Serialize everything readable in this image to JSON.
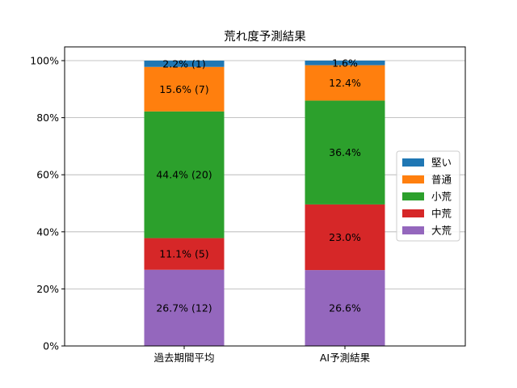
{
  "chart_data": {
    "type": "bar",
    "stacked": true,
    "title": "荒れ度予測結果",
    "xlabel": "",
    "ylabel": "",
    "categories": [
      "過去期間平均",
      "AI予測結果"
    ],
    "ylim": [
      0,
      100
    ],
    "yticks": [
      {
        "value": 0,
        "label": "0%"
      },
      {
        "value": 20,
        "label": "20%"
      },
      {
        "value": 40,
        "label": "40%"
      },
      {
        "value": 60,
        "label": "60%"
      },
      {
        "value": 80,
        "label": "80%"
      },
      {
        "value": 100,
        "label": "100%"
      }
    ],
    "grid": "y",
    "legend_position": "right",
    "series": [
      {
        "name": "大荒",
        "color": "#9467bd",
        "values": [
          26.7,
          26.6
        ],
        "labels": [
          "26.7% (12)",
          "26.6%"
        ]
      },
      {
        "name": "中荒",
        "color": "#d62728",
        "values": [
          11.1,
          23.0
        ],
        "labels": [
          "11.1% (5)",
          "23.0%"
        ]
      },
      {
        "name": "小荒",
        "color": "#2ca02c",
        "values": [
          44.4,
          36.4
        ],
        "labels": [
          "44.4% (20)",
          "36.4%"
        ]
      },
      {
        "name": "普通",
        "color": "#ff7f0e",
        "values": [
          15.6,
          12.4
        ],
        "labels": [
          "15.6% (7)",
          "12.4%"
        ]
      },
      {
        "name": "堅い",
        "color": "#1f77b4",
        "values": [
          2.2,
          1.6
        ],
        "labels": [
          "2.2% (1)",
          "1.6%"
        ]
      }
    ],
    "legend_order": [
      "堅い",
      "普通",
      "小荒",
      "中荒",
      "大荒"
    ]
  }
}
